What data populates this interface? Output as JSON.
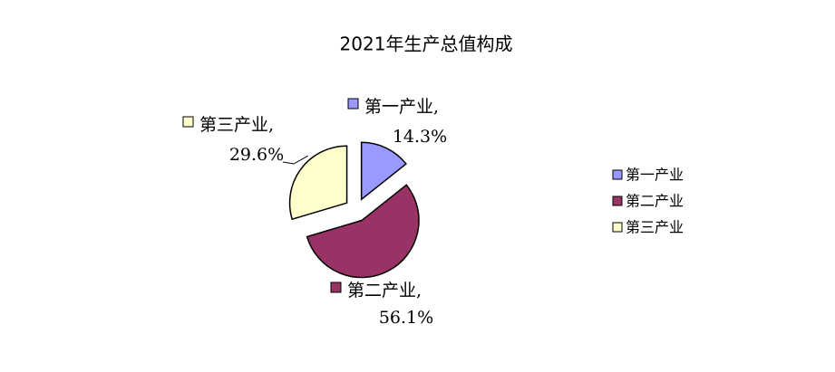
{
  "chart_data": {
    "type": "pie",
    "title": "2021年生产总值构成",
    "categories": [
      "第一产业",
      "第二产业",
      "第三产业"
    ],
    "values": [
      14.3,
      56.1,
      29.6
    ],
    "value_labels": [
      "14.3%",
      "56.1%",
      "29.6%"
    ],
    "data_label_separator": ",",
    "colors": [
      "#9999ff",
      "#993366",
      "#ffffcc"
    ],
    "exploded": true,
    "legend": "right"
  }
}
